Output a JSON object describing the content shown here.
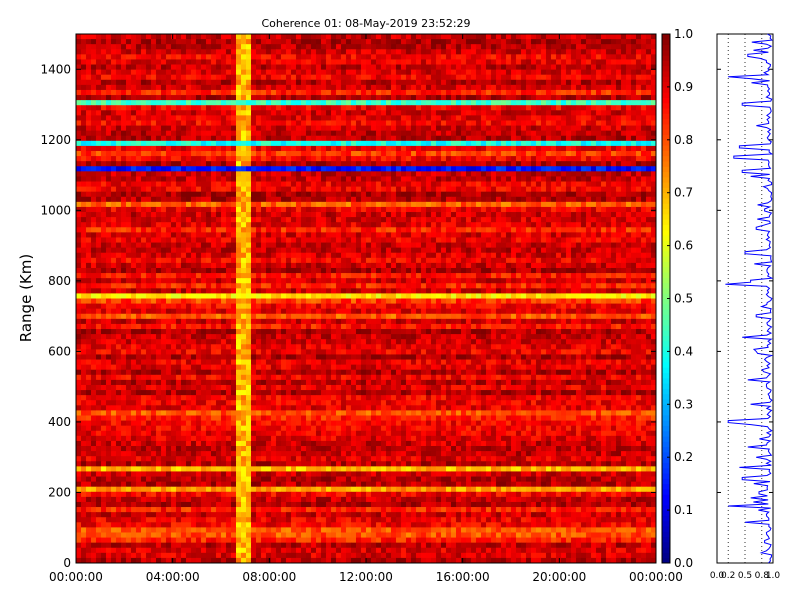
{
  "chart_data": [
    {
      "type": "heatmap",
      "title": "Coherence 01: 08-May-2019 23:52:29",
      "xlabel": "",
      "ylabel": "Range (Km)",
      "xlim": [
        "00:00:00",
        "00:00:00"
      ],
      "ylim": [
        0,
        1500
      ],
      "xticks": [
        "00:00:00",
        "04:00:00",
        "08:00:00",
        "12:00:00",
        "16:00:00",
        "20:00:00",
        "00:00:00"
      ],
      "yticks": [
        "0",
        "200",
        "400",
        "600",
        "800",
        "1000",
        "1200",
        "1400"
      ],
      "colorbar": {
        "ticks": [
          "0.0",
          "0.1",
          "0.2",
          "0.3",
          "0.4",
          "0.5",
          "0.6",
          "0.7",
          "0.8",
          "0.9",
          "1.0"
        ],
        "range": [
          0,
          1
        ],
        "colormap": "jet"
      },
      "features": {
        "low_coherence_time_band_hours": [
          6.6,
          7.2
        ],
        "low_coherence_range_bands_km": [
          {
            "range_km": 1115,
            "value": 0.1
          },
          {
            "range_km": 1185,
            "value": 0.35
          },
          {
            "range_km": 1300,
            "value": 0.4
          },
          {
            "range_km": 755,
            "value": 0.6
          },
          {
            "range_km": 270,
            "value": 0.65
          },
          {
            "range_km": 205,
            "value": 0.7
          }
        ],
        "typical_value": 0.9
      }
    },
    {
      "type": "line",
      "title": "",
      "xlabel": "",
      "ylabel": "",
      "xlim": [
        0,
        1
      ],
      "ylim": [
        0,
        1500
      ],
      "xticks": [
        "0.0",
        "0.2",
        "0.5",
        "0.8",
        "1.0"
      ],
      "gridlines_x": [
        0.2,
        0.5,
        0.8
      ],
      "series": [
        {
          "color": "#0000ff",
          "points": [
            {
              "range_km": 0,
              "value": 0.92
            },
            {
              "range_km": 60,
              "value": 0.85
            },
            {
              "range_km": 115,
              "value": 0.5
            },
            {
              "range_km": 160,
              "value": 0.2
            },
            {
              "range_km": 200,
              "value": 0.75
            },
            {
              "range_km": 240,
              "value": 0.45
            },
            {
              "range_km": 270,
              "value": 0.4
            },
            {
              "range_km": 330,
              "value": 0.55
            },
            {
              "range_km": 400,
              "value": 0.2
            },
            {
              "range_km": 450,
              "value": 0.6
            },
            {
              "range_km": 520,
              "value": 0.55
            },
            {
              "range_km": 600,
              "value": 0.7
            },
            {
              "range_km": 640,
              "value": 0.45
            },
            {
              "range_km": 700,
              "value": 0.7
            },
            {
              "range_km": 790,
              "value": 0.15
            },
            {
              "range_km": 800,
              "value": 0.6
            },
            {
              "range_km": 880,
              "value": 0.5
            },
            {
              "range_km": 950,
              "value": 0.7
            },
            {
              "range_km": 1000,
              "value": 0.85
            },
            {
              "range_km": 1110,
              "value": 0.45
            },
            {
              "range_km": 1150,
              "value": 0.3
            },
            {
              "range_km": 1180,
              "value": 0.4
            },
            {
              "range_km": 1300,
              "value": 0.45
            },
            {
              "range_km": 1380,
              "value": 0.2
            },
            {
              "range_km": 1440,
              "value": 0.55
            },
            {
              "range_km": 1500,
              "value": 0.9
            }
          ]
        }
      ]
    }
  ]
}
